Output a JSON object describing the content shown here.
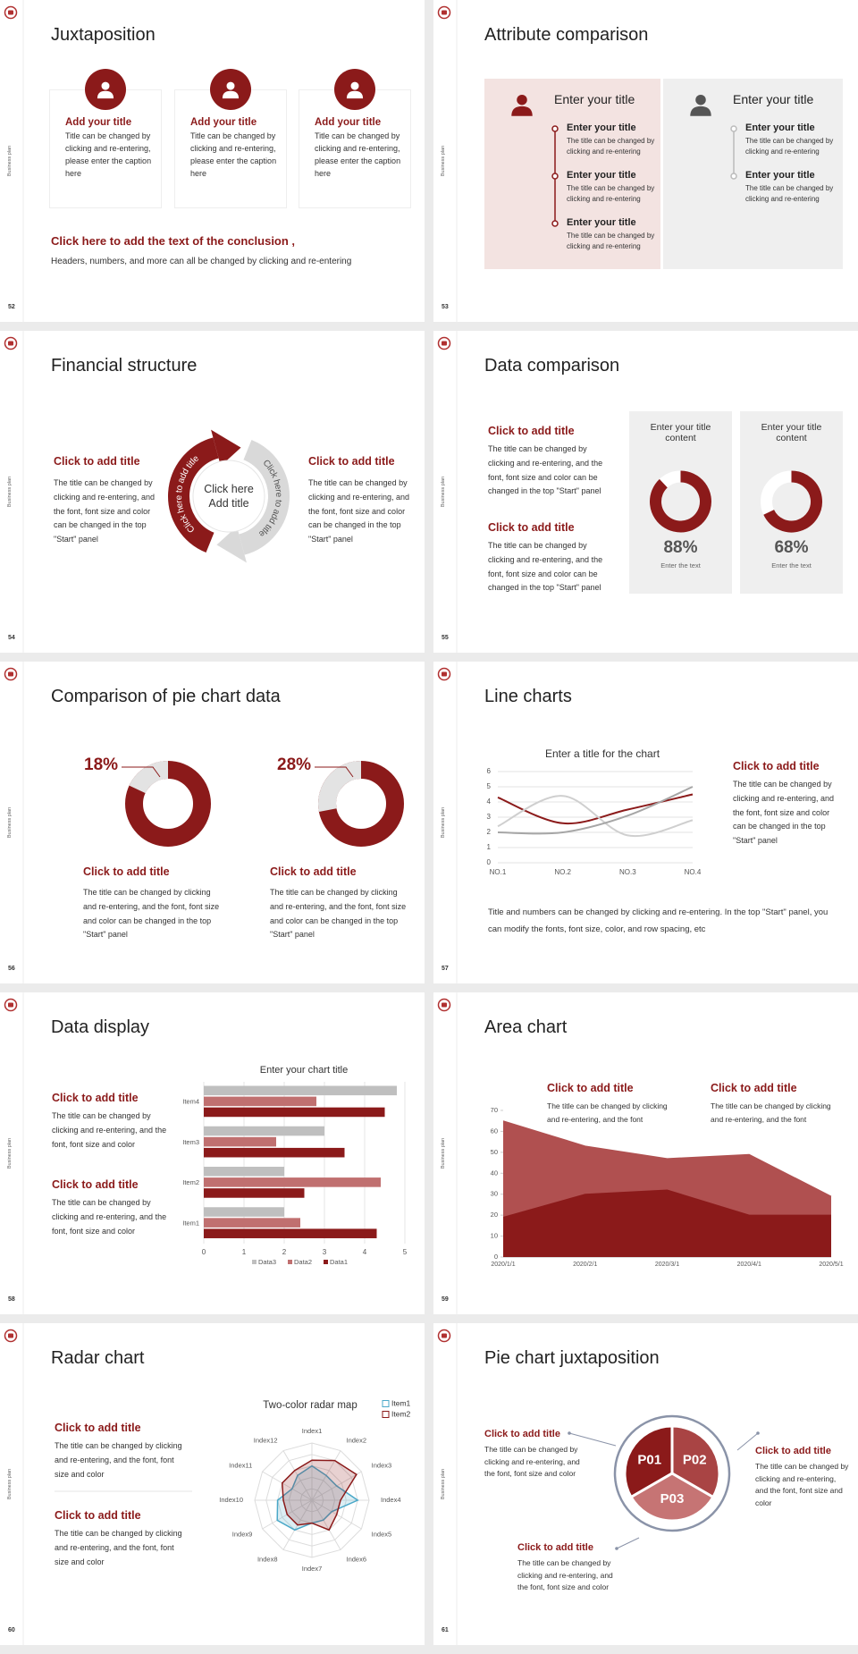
{
  "side_label": "Business plan",
  "slides": [
    {
      "page": 52,
      "title": "Juxtaposition",
      "cards": [
        {
          "title": "Add your title",
          "text": "Title can be changed by clicking and re-entering, please enter the caption here"
        },
        {
          "title": "Add your title",
          "text": "Title can be changed by clicking and re-entering, please enter the caption here"
        },
        {
          "title": "Add your title",
          "text": "Title can be changed by clicking and re-entering, please enter the caption here"
        }
      ],
      "conclusion_title": "Click here to add the text of the conclusion ,",
      "conclusion_text": "Headers, numbers, and more can all be changed by clicking and re-entering"
    },
    {
      "page": 53,
      "title": "Attribute comparison",
      "panels": [
        {
          "title": "Enter your title",
          "items": [
            {
              "title": "Enter your title",
              "text": "The title can be changed by clicking and re-entering"
            },
            {
              "title": "Enter your title",
              "text": "The title can be changed by clicking and re-entering"
            },
            {
              "title": "Enter your title",
              "text": "The title can be changed by clicking and re-entering"
            }
          ]
        },
        {
          "title": "Enter your title",
          "items": [
            {
              "title": "Enter your title",
              "text": "The title can be changed by clicking and re-entering"
            },
            {
              "title": "Enter your title",
              "text": "The title can be changed by clicking and re-entering"
            }
          ]
        }
      ]
    },
    {
      "page": 54,
      "title": "Financial structure",
      "blocks": [
        {
          "title": "Click to add title",
          "text": "The title can be changed by clicking and re-entering, and the font, font size and color can be changed in the top \"Start\" panel"
        },
        {
          "title": "Click to add title",
          "text": "The title can be changed by clicking and re-entering, and the font, font size and color can be changed in the top \"Start\" panel"
        }
      ],
      "center": "Click here Add title",
      "arc_labels": [
        "Click here to add title",
        "Click here to add title"
      ]
    },
    {
      "page": 55,
      "title": "Data comparison",
      "blocks": [
        {
          "title": "Click to add title",
          "text": "The title can be changed by clicking and re-entering, and the font, font size and color can be changed in the top \"Start\" panel"
        },
        {
          "title": "Click to add title",
          "text": "The title can be changed by clicking and re-entering, and the font, font size and color can be changed in the top \"Start\" panel"
        }
      ],
      "chart_data": [
        {
          "type": "donut",
          "title": "Enter your title content",
          "values": [
            88
          ],
          "value_labels": [
            "88%"
          ],
          "caption": "Enter the text",
          "color": "#8b1a1a"
        },
        {
          "type": "donut",
          "title": "Enter your title content",
          "values": [
            68
          ],
          "value_labels": [
            "68%"
          ],
          "caption": "Enter the text",
          "color": "#8b1a1a"
        }
      ]
    },
    {
      "page": 56,
      "title": "Comparison of pie chart data",
      "chart_data": [
        {
          "type": "donut",
          "values": [
            18
          ],
          "value_labels": [
            "18%"
          ],
          "color": "#e3e3e3"
        },
        {
          "type": "donut",
          "values": [
            28
          ],
          "value_labels": [
            "28%"
          ],
          "color": "#e3e3e3"
        }
      ],
      "blocks": [
        {
          "title": "Click to add title",
          "text": "The title can be changed by clicking and re-entering, and the font, font size and color can be changed in the top \"Start\" panel"
        },
        {
          "title": "Click to add title",
          "text": "The title can be changed by clicking and re-entering, and the font, font size and color can be changed in the top \"Start\" panel"
        }
      ]
    },
    {
      "page": 57,
      "title": "Line charts",
      "chart_data": {
        "type": "line",
        "title": "Enter a title for the chart",
        "categories": [
          "NO.1",
          "NO.2",
          "NO.3",
          "NO.4"
        ],
        "series": [
          {
            "color": "#8b1a1a",
            "values": [
              4.3,
              2.6,
              3.5,
              4.5
            ]
          },
          {
            "color": "#cfcfcf",
            "values": [
              2.4,
              4.4,
              1.8,
              2.8
            ]
          },
          {
            "color": "#a6a6a6",
            "values": [
              2,
              2,
              3.1,
              5
            ]
          }
        ],
        "ylim": [
          0,
          6
        ],
        "yticks": [
          0,
          1,
          2,
          3,
          4,
          5,
          6
        ],
        "grid": true,
        "smooth": true
      },
      "blocks": [
        {
          "title": "Click to add title",
          "text": "The title can be changed by clicking and re-entering, and the font, font size and color can be changed in the top \"Start\" panel"
        }
      ],
      "note": "Title and numbers can be changed by clicking and re-entering. In the top \"Start\" panel, you can modify the fonts, font size, color, and row spacing, etc"
    },
    {
      "page": 58,
      "title": "Data display",
      "chart_data": {
        "type": "hbar",
        "title": "Enter your chart title",
        "categories": [
          "Item1",
          "Item2",
          "Item3",
          "Item4"
        ],
        "series": [
          {
            "name": "Data1",
            "color": "#8b1a1a",
            "values": [
              4.3,
              2.5,
              3.5,
              4.5
            ]
          },
          {
            "name": "Data2",
            "color": "#c07070",
            "values": [
              2.4,
              4.4,
              1.8,
              2.8
            ]
          },
          {
            "name": "Data3",
            "color": "#bfbfbf",
            "values": [
              2,
              2,
              3,
              4.8
            ]
          }
        ],
        "xlim": [
          0,
          5
        ],
        "xticks": [
          0,
          1,
          2,
          3,
          4,
          5
        ],
        "grid": true,
        "legend": "bottom"
      },
      "blocks": [
        {
          "title": "Click to add title",
          "text": "The title can be changed by clicking and re-entering, and the font, font size and color"
        },
        {
          "title": "Click to add title",
          "text": "The title can be changed by clicking and re-entering, and the font, font size and color"
        }
      ]
    },
    {
      "page": 59,
      "title": "Area chart",
      "chart_data": {
        "type": "area",
        "categories": [
          "2020/1/1",
          "2020/2/1",
          "2020/3/1",
          "2020/4/1",
          "2020/5/1"
        ],
        "series": [
          {
            "color": "#b05050",
            "values": [
              65,
              53,
              47,
              49,
              29
            ]
          },
          {
            "color": "#8b1a1a",
            "values": [
              19,
              30,
              32,
              20,
              20
            ]
          }
        ],
        "ylim": [
          0,
          70
        ],
        "yticks": [
          0,
          10,
          20,
          30,
          40,
          50,
          60,
          70
        ]
      },
      "blocks": [
        {
          "title": "Click to add title",
          "text": "The title can be changed by clicking and re-entering, and the font"
        },
        {
          "title": "Click to add title",
          "text": "The title can be changed by clicking and re-entering, and the font"
        }
      ]
    },
    {
      "page": 60,
      "title": "Radar chart",
      "chart_data": {
        "type": "radar",
        "title": "Two-color radar map",
        "categories": [
          "Index1",
          "Index2",
          "Index3",
          "Index4",
          "Index5",
          "Index6",
          "Index7",
          "Index8",
          "Index9",
          "Index10",
          "Index11",
          "Index12"
        ],
        "series": [
          {
            "name": "Item1",
            "color": "#4aa8c8",
            "values": [
              6,
              5,
              5,
              8,
              4,
              4,
              4,
              6,
              7,
              6,
              4,
              5
            ]
          },
          {
            "name": "Item2",
            "color": "#8b1a1a",
            "values": [
              7,
              8,
              9,
              5,
              5,
              6,
              4,
              5,
              5,
              5,
              6,
              6
            ]
          }
        ],
        "rlim": [
          0,
          10
        ],
        "legend": "upper right"
      },
      "blocks": [
        {
          "title": "Click to add title",
          "text": "The title can be changed by clicking and re-entering, and the font, font size and color"
        },
        {
          "title": "Click to add title",
          "text": "The title can be changed by clicking and re-entering, and the font, font size and color"
        }
      ]
    },
    {
      "page": 61,
      "title": "Pie chart juxtaposition",
      "segments": [
        "P01",
        "P02",
        "P03"
      ],
      "blocks": [
        {
          "title": "Click to add title",
          "text": "The title can be changed by clicking and re-entering, and the font, font size and color"
        },
        {
          "title": "Click to add title",
          "text": "The title can be changed by clicking and re-entering, and the font, font size and color"
        },
        {
          "title": "Click to add title",
          "text": "The title can be changed by clicking and re-entering, and the font, font size and color"
        }
      ]
    }
  ]
}
